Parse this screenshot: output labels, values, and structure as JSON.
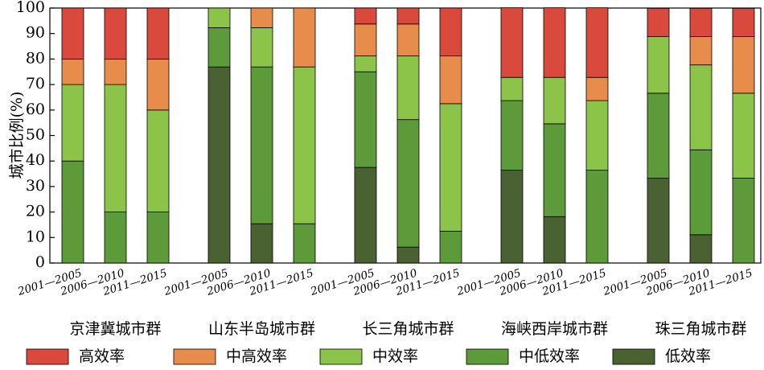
{
  "chart_data": {
    "type": "bar",
    "stacked": true,
    "ylabel": "城市比例(%)",
    "ylim": [
      0,
      100
    ],
    "yticks": [
      0,
      10,
      20,
      30,
      40,
      50,
      60,
      70,
      80,
      90,
      100
    ],
    "grid": false,
    "legend_position": "bottom",
    "groups": [
      "京津冀城市群",
      "山东半岛城市群",
      "长三角城市群",
      "海峡西岸城市群",
      "珠三角城市群"
    ],
    "periods": [
      "2001—2005",
      "2006—2010",
      "2011—2015"
    ],
    "series": [
      {
        "name": "低效率",
        "color": "#4a6232",
        "values": [
          0,
          0,
          0,
          76.9,
          15.4,
          0,
          37.5,
          6.25,
          0,
          36.4,
          18.2,
          0,
          33.3,
          11.1,
          0
        ]
      },
      {
        "name": "中低效率",
        "color": "#5c9a3a",
        "values": [
          40,
          20,
          20,
          15.4,
          61.5,
          15.4,
          37.5,
          50,
          12.5,
          27.3,
          36.4,
          36.4,
          33.3,
          33.3,
          33.3
        ]
      },
      {
        "name": "中效率",
        "color": "#8cc44a",
        "values": [
          30,
          50,
          40,
          7.7,
          15.4,
          61.5,
          6.25,
          25,
          50,
          9.1,
          18.2,
          27.3,
          22.2,
          33.3,
          33.3
        ]
      },
      {
        "name": "中高效率",
        "color": "#e78c4b",
        "values": [
          10,
          10,
          20,
          0,
          7.7,
          23.1,
          12.5,
          12.5,
          18.75,
          0,
          0,
          9.1,
          0,
          11.1,
          22.2
        ]
      },
      {
        "name": "高效率",
        "color": "#d94a3d",
        "values": [
          20,
          20,
          20,
          0,
          0,
          0,
          6.25,
          6.25,
          18.75,
          27.3,
          27.3,
          27.3,
          11.1,
          11.1,
          11.1
        ]
      }
    ],
    "legend_order": [
      "高效率",
      "中高效率",
      "中效率",
      "中低效率",
      "低效率"
    ]
  }
}
